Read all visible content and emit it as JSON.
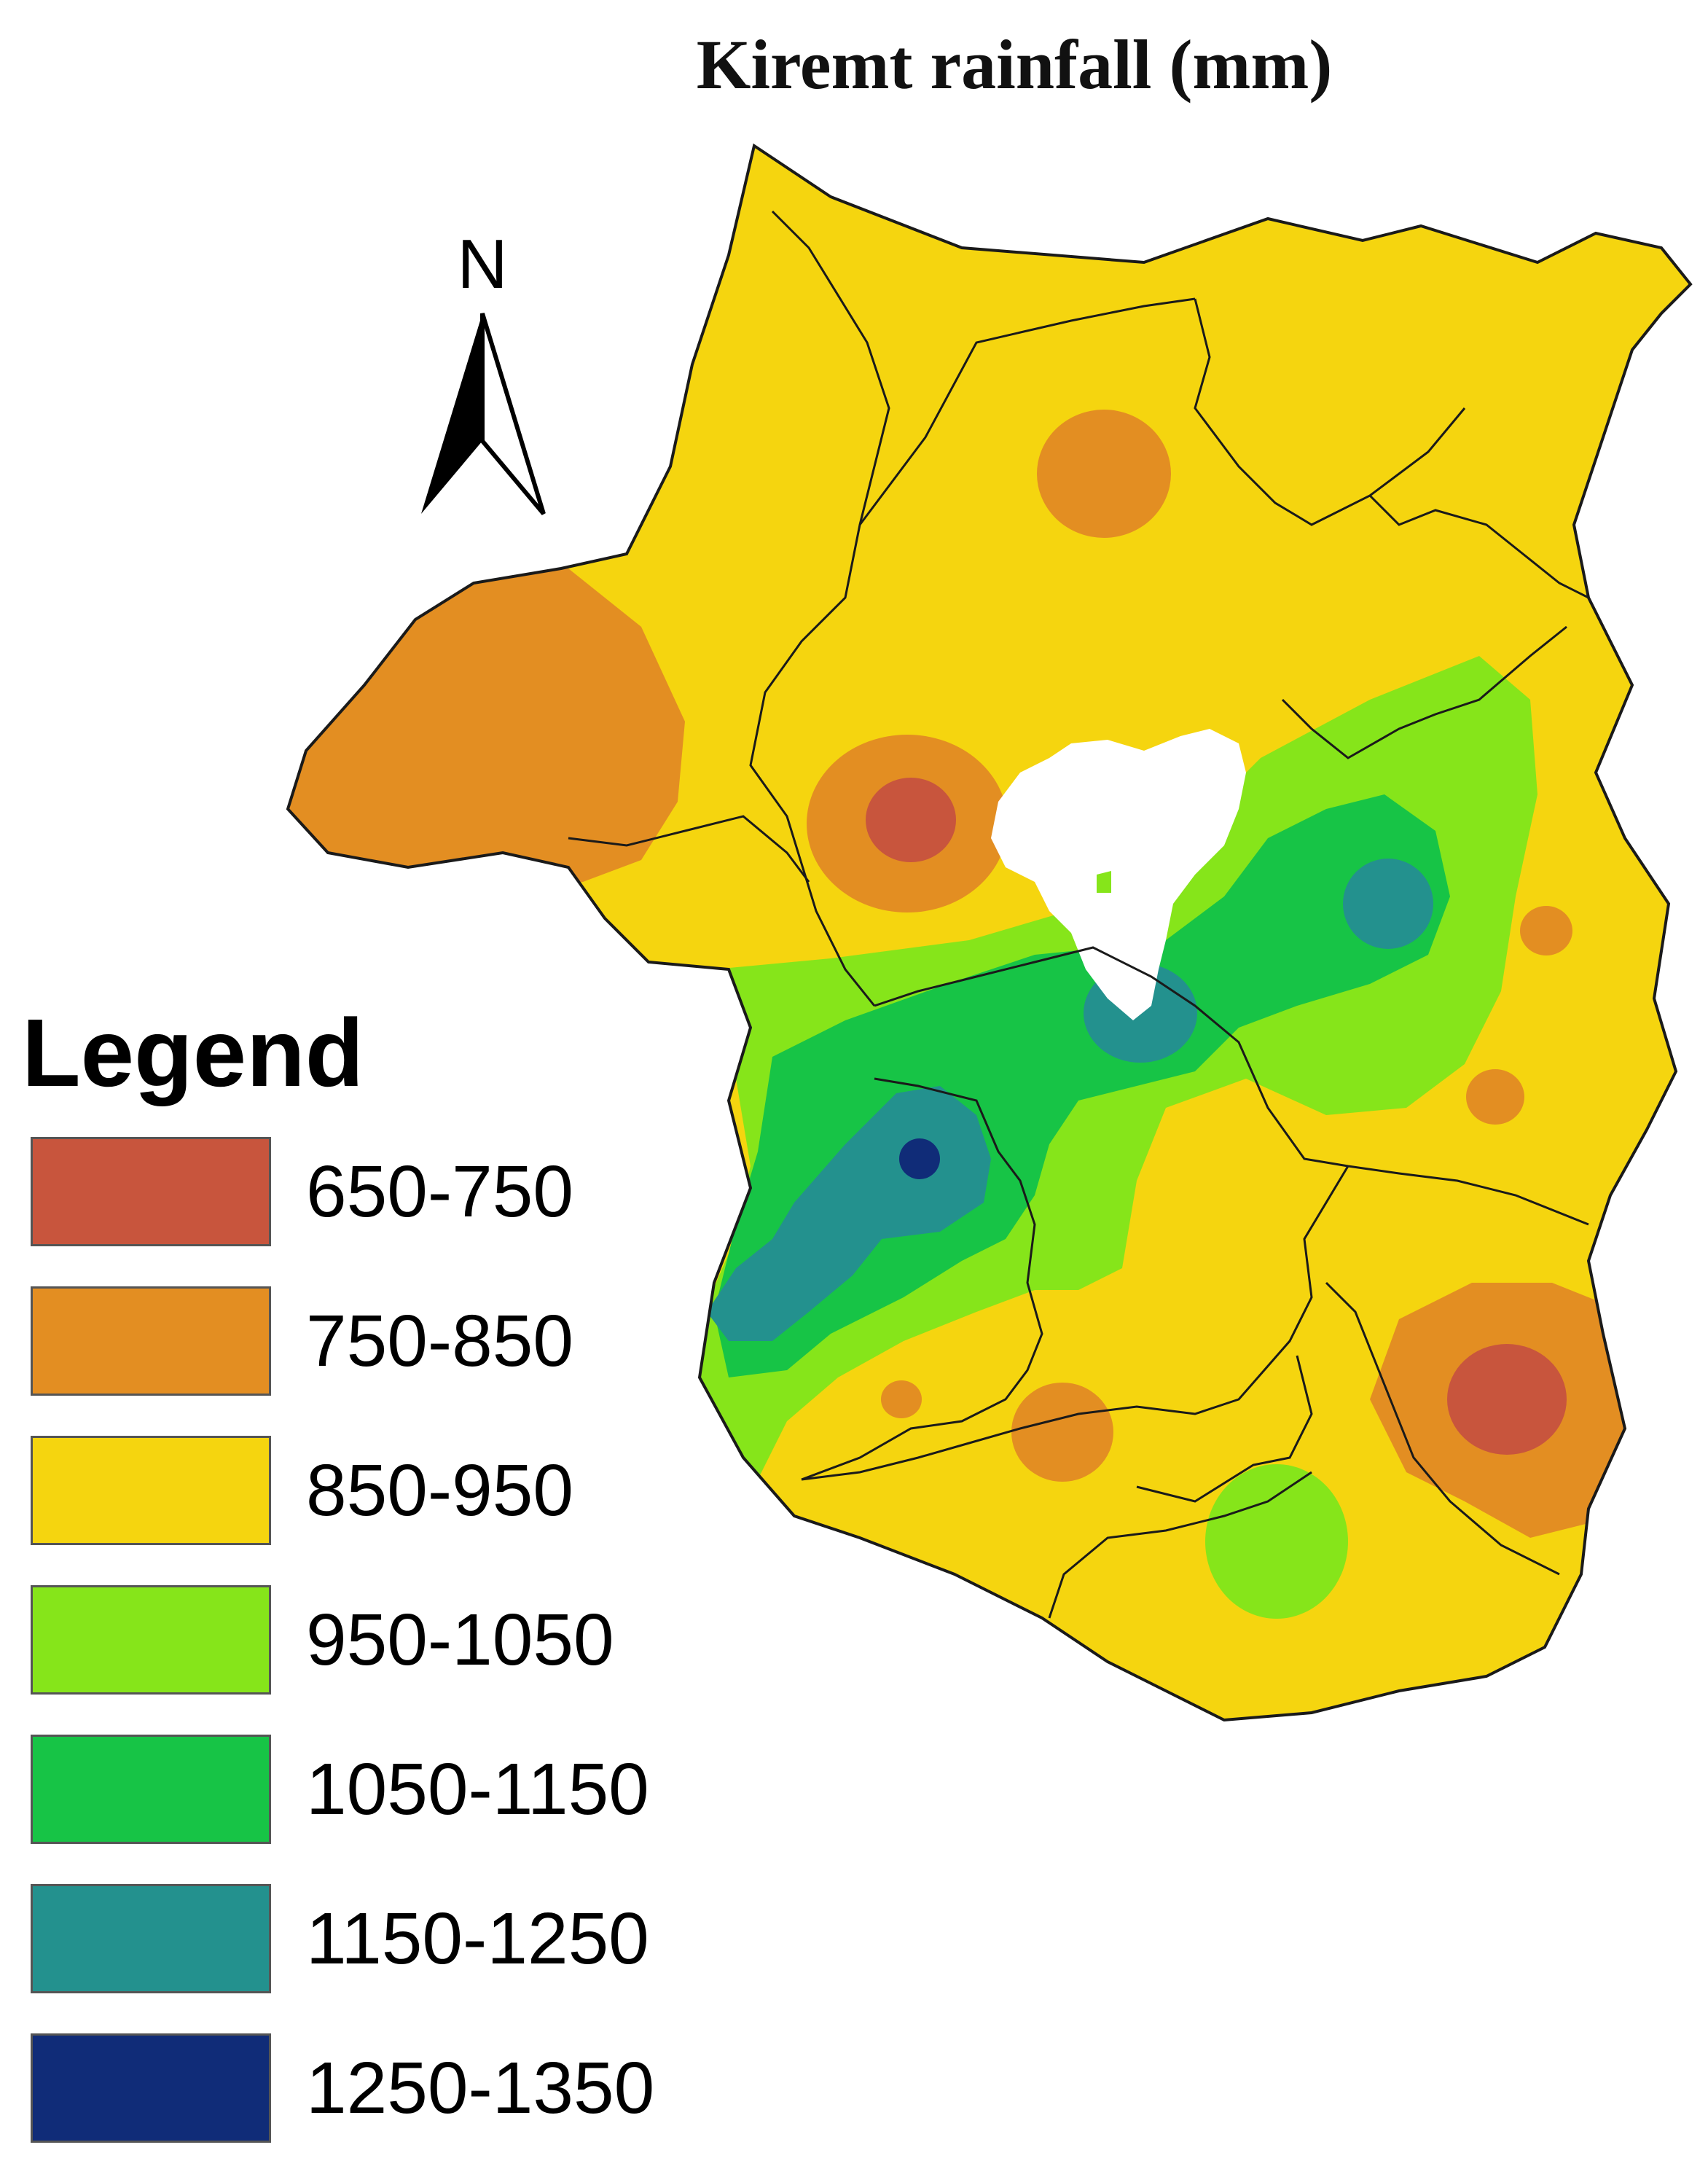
{
  "title": "Kiremt rainfall (mm)",
  "north_arrow": {
    "label": "N",
    "icon": "north-arrow-icon"
  },
  "legend": {
    "title": "Legend",
    "classes": [
      {
        "label": "650-750",
        "color": "#c8553d"
      },
      {
        "label": "750-850",
        "color": "#e38e22"
      },
      {
        "label": "850-950",
        "color": "#f5d50f"
      },
      {
        "label": "950-1050",
        "color": "#86e51a"
      },
      {
        "label": "1050-1150",
        "color": "#17c446"
      },
      {
        "label": "1150-1250",
        "color": "#23918e"
      },
      {
        "label": "1250-1350",
        "color": "#102c78"
      }
    ]
  },
  "colors": {
    "boundary": "#1a1a1a",
    "water_body": "#ffffff"
  }
}
